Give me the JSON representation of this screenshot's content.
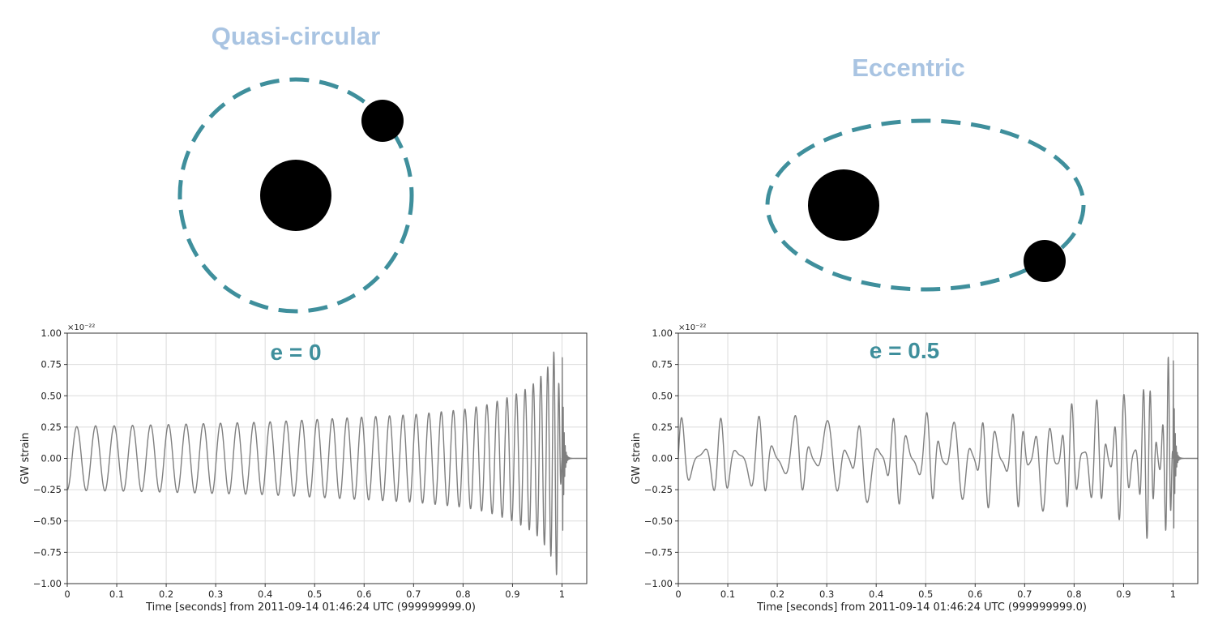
{
  "panels": [
    {
      "title": "Quasi-circular",
      "eccentricity_label": "e = 0",
      "orbit": {
        "shape": "circle",
        "color": "#3f8f9c",
        "style": "dashed"
      },
      "bodies": [
        "large-black-hole",
        "small-black-hole"
      ]
    },
    {
      "title": "Eccentric",
      "eccentricity_label": "e = 0.5",
      "orbit": {
        "shape": "ellipse",
        "color": "#3f8f9c",
        "style": "dashed"
      },
      "bodies": [
        "large-black-hole",
        "small-black-hole"
      ]
    }
  ],
  "chart_data": [
    {
      "type": "line",
      "eccentricity": 0,
      "xlabel": "Time [seconds] from 2011-09-14 01:46:24 UTC (999999999.0)",
      "ylabel": "GW strain",
      "multiplier": "×10⁻²²",
      "xlim": [
        0,
        1.05
      ],
      "ylim": [
        -1.0,
        1.0
      ],
      "xticks": [
        "0",
        "0.1",
        "0.2",
        "0.3",
        "0.4",
        "0.5",
        "0.6",
        "0.7",
        "0.8",
        "0.9",
        "1"
      ],
      "xtick_values": [
        0,
        0.1,
        0.2,
        0.3,
        0.4,
        0.5,
        0.6,
        0.7,
        0.8,
        0.9,
        1.0
      ],
      "yticks": [
        "−1.00",
        "−0.75",
        "−0.50",
        "−0.25",
        "0.00",
        "0.25",
        "0.50",
        "0.75",
        "1.00"
      ],
      "ytick_values": [
        -1.0,
        -0.75,
        -0.5,
        -0.25,
        0,
        0.25,
        0.5,
        0.75,
        1.0
      ],
      "grid": true,
      "line_color": "#7f7f7f",
      "series": [
        {
          "x": [
            0,
            0.05,
            0.1,
            0.2,
            0.3,
            0.4,
            0.5,
            0.6,
            0.7,
            0.8,
            0.85,
            0.9,
            0.93,
            0.95,
            0.97,
            0.98,
            0.99,
            1.0,
            1.05
          ],
          "y_envelope": [
            0.25,
            0.26,
            0.26,
            0.27,
            0.28,
            0.29,
            0.31,
            0.33,
            0.35,
            0.39,
            0.43,
            0.5,
            0.56,
            0.62,
            0.72,
            0.8,
            0.95,
            0.0,
            0.0
          ]
        }
      ]
    },
    {
      "type": "line",
      "eccentricity": 0.5,
      "xlabel": "Time [seconds] from 2011-09-14 01:46:24 UTC (999999999.0)",
      "ylabel": "GW strain",
      "multiplier": "×10⁻²²",
      "xlim": [
        0,
        1.05
      ],
      "ylim": [
        -1.0,
        1.0
      ],
      "xticks": [
        "0",
        "0.1",
        "0.2",
        "0.3",
        "0.4",
        "0.5",
        "0.6",
        "0.7",
        "0.8",
        "0.9",
        "1"
      ],
      "xtick_values": [
        0,
        0.1,
        0.2,
        0.3,
        0.4,
        0.5,
        0.6,
        0.7,
        0.8,
        0.9,
        1.0
      ],
      "yticks": [
        "−1.00",
        "−0.75",
        "−0.50",
        "−0.25",
        "0.00",
        "0.25",
        "0.50",
        "0.75",
        "1.00"
      ],
      "ytick_values": [
        -1.0,
        -0.75,
        -0.5,
        -0.25,
        0,
        0.25,
        0.5,
        0.75,
        1.0
      ],
      "grid": true,
      "line_color": "#7f7f7f",
      "series": [
        {
          "x": [
            0,
            0.05,
            0.1,
            0.2,
            0.3,
            0.4,
            0.5,
            0.6,
            0.7,
            0.8,
            0.85,
            0.9,
            0.93,
            0.95,
            0.97,
            0.98,
            0.99,
            1.0,
            1.05
          ],
          "y_envelope": [
            0.35,
            0.3,
            0.33,
            0.34,
            0.35,
            0.37,
            0.38,
            0.39,
            0.41,
            0.45,
            0.47,
            0.55,
            0.6,
            0.65,
            0.75,
            0.82,
            0.92,
            0.0,
            0.0
          ]
        }
      ]
    }
  ]
}
